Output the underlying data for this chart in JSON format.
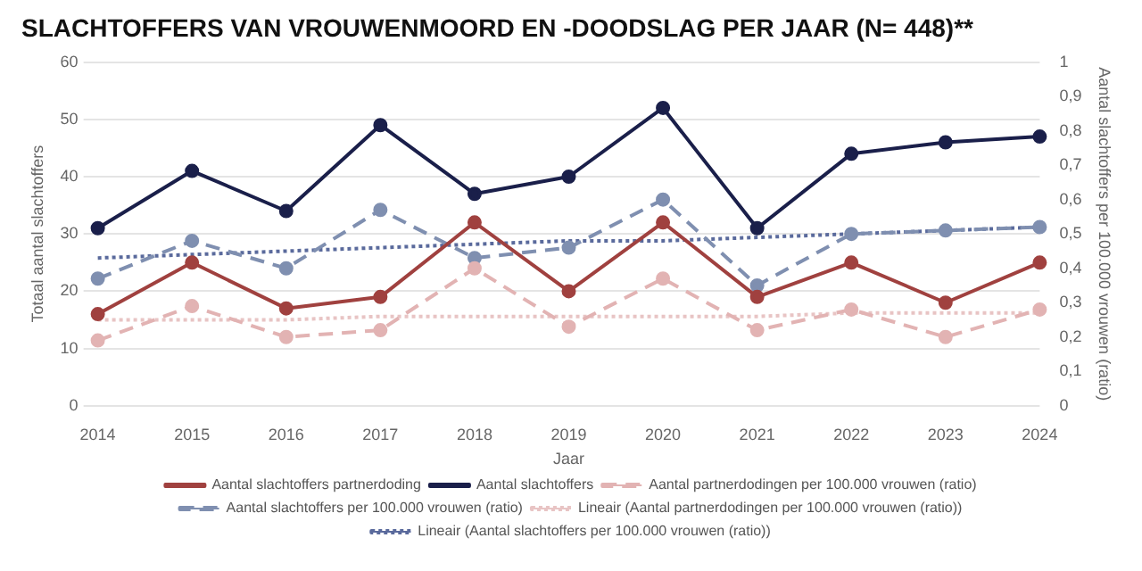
{
  "chart_data": {
    "type": "line",
    "title": "SLACHTOFFERS VAN VROUWENMOORD EN -DOODSLAG PER JAAR (N= 448)**",
    "xlabel": "Jaar",
    "ylabel": "Totaal aantal slachtoffers",
    "y2label": "Aantal slachtoffers per 100.000 vrouwen (ratio)",
    "categories": [
      "2014",
      "2015",
      "2016",
      "2017",
      "2018",
      "2019",
      "2020",
      "2021",
      "2022",
      "2023",
      "2024"
    ],
    "series": [
      {
        "name": "Aantal slachtoffers partnerdoding",
        "color": "#a0413f",
        "marker": "circle",
        "line_style": "solid",
        "values": [
          16,
          25,
          17,
          19,
          32,
          20,
          32,
          19,
          25,
          18,
          25
        ]
      },
      {
        "name": "Aantal slachtoffers",
        "color": "#1a1f4a",
        "marker": "circle",
        "line_style": "solid",
        "values": [
          31,
          41,
          34,
          49,
          37,
          40,
          52,
          31,
          44,
          46,
          47
        ]
      },
      {
        "name": "Aantal partnerdodingen per 100.000 vrouwen (ratio)",
        "color": "#e2b3b3",
        "marker": "circle",
        "line_style": "dashed",
        "axis": "y2",
        "values": [
          0.19,
          0.29,
          0.2,
          0.22,
          0.4,
          0.23,
          0.37,
          0.22,
          0.28,
          0.2,
          0.28
        ]
      },
      {
        "name": "Aantal slachtoffers per 100.000 vrouwen (ratio)",
        "color": "#7f8fb0",
        "marker": "circle",
        "line_style": "dashed",
        "axis": "y2",
        "values": [
          0.37,
          0.48,
          0.4,
          0.57,
          0.43,
          0.46,
          0.6,
          0.35,
          0.5,
          0.51,
          0.52
        ]
      },
      {
        "name": "Lineair (Aantal partnerdodingen per 100.000 vrouwen (ratio))",
        "color": "#e8c4c4",
        "type": "line",
        "marker": "none",
        "line_style": "dotted",
        "axis": "y2",
        "values": [
          0.25,
          0.25,
          0.25,
          0.26,
          0.26,
          0.26,
          0.26,
          0.26,
          0.27,
          0.27,
          0.27
        ]
      },
      {
        "name": "Lineair (Aantal slachtoffers per 100.000 vrouwen (ratio))",
        "color": "#5a6a9c",
        "type": "line",
        "marker": "none",
        "line_style": "dotted",
        "axis": "y2",
        "values": [
          0.43,
          0.44,
          0.45,
          0.46,
          0.47,
          0.48,
          0.48,
          0.49,
          0.5,
          0.51,
          0.52
        ]
      }
    ],
    "ylim": [
      0,
      60
    ],
    "yticks": [
      0,
      10,
      20,
      30,
      40,
      50,
      60
    ],
    "y2lim": [
      0,
      1
    ],
    "y2ticks": [
      {
        "value": 0,
        "label": "0"
      },
      {
        "value": 0.1,
        "label": "0,1"
      },
      {
        "value": 0.2,
        "label": "0,2"
      },
      {
        "value": 0.3,
        "label": "0,3"
      },
      {
        "value": 0.4,
        "label": "0,4"
      },
      {
        "value": 0.5,
        "label": "0,5"
      },
      {
        "value": 0.6,
        "label": "0,6"
      },
      {
        "value": 0.7,
        "label": "0,7"
      },
      {
        "value": 0.8,
        "label": "0,8"
      },
      {
        "value": 0.9,
        "label": "0,9"
      },
      {
        "value": 1,
        "label": "1"
      }
    ],
    "grid": "y",
    "legend": "bottom"
  }
}
